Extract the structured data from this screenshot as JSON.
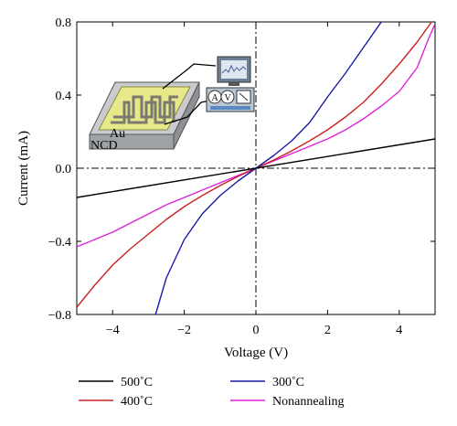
{
  "chart_data": {
    "type": "line",
    "xlabel": "Voltage (V)",
    "ylabel": "Current (mA)",
    "xlim": [
      -5,
      5
    ],
    "ylim": [
      -0.8,
      0.8
    ],
    "x_ticks": [
      -4,
      -2,
      0,
      2,
      4
    ],
    "y_ticks": [
      -0.8,
      -0.4,
      0.0,
      0.4,
      0.8
    ],
    "x_tick_labels": [
      "−4",
      "−2",
      "0",
      "2",
      "4"
    ],
    "y_tick_labels": [
      "−0.8",
      "−0.4",
      "0.0",
      "0.4",
      "0.8"
    ],
    "grid": false,
    "reference_lines": [
      "x = 0 (dash-dot)",
      "y = 0 (dash-dot)"
    ],
    "legend_position": "bottom",
    "series": [
      {
        "name": "500˚C",
        "color": "#000000",
        "x": [
          -5,
          5
        ],
        "y": [
          -0.16,
          0.16
        ]
      },
      {
        "name": "300˚C",
        "color": "#1a1aa8",
        "x": [
          -2.8,
          -2.5,
          -2,
          -1.5,
          -1,
          -0.5,
          0,
          0.5,
          1,
          1.5,
          2,
          2.5,
          3,
          3.5
        ],
        "y": [
          -0.8,
          -0.6,
          -0.39,
          -0.25,
          -0.15,
          -0.07,
          0.0,
          0.07,
          0.15,
          0.25,
          0.39,
          0.52,
          0.66,
          0.8
        ]
      },
      {
        "name": "400˚C",
        "color": "#cc2222",
        "x": [
          -5,
          -4.5,
          -4,
          -3.5,
          -3,
          -2.5,
          -2,
          -1.5,
          -1,
          -0.5,
          0,
          0.5,
          1,
          1.5,
          2,
          2.5,
          3,
          3.5,
          4,
          4.5,
          4.9
        ],
        "y": [
          -0.76,
          -0.64,
          -0.53,
          -0.44,
          -0.36,
          -0.28,
          -0.21,
          -0.15,
          -0.095,
          -0.045,
          0.0,
          0.045,
          0.095,
          0.15,
          0.21,
          0.28,
          0.36,
          0.46,
          0.57,
          0.69,
          0.8
        ]
      },
      {
        "name": "Nonannealing",
        "color": "#dd22dd",
        "x": [
          -5,
          -4.5,
          -4,
          -3.5,
          -3,
          -2.5,
          -2,
          -1.5,
          -1,
          -0.5,
          0,
          0.5,
          1,
          1.5,
          2,
          2.5,
          3,
          3.5,
          4,
          4.5,
          4.8,
          5
        ],
        "y": [
          -0.43,
          -0.39,
          -0.35,
          -0.3,
          -0.25,
          -0.2,
          -0.16,
          -0.12,
          -0.08,
          -0.04,
          0.0,
          0.04,
          0.08,
          0.12,
          0.16,
          0.21,
          0.27,
          0.34,
          0.42,
          0.55,
          0.7,
          0.79
        ]
      }
    ]
  },
  "inset": {
    "label_au": "Au",
    "label_ncd": "NCD",
    "meter_label_a": "A",
    "meter_label_v": "V"
  }
}
